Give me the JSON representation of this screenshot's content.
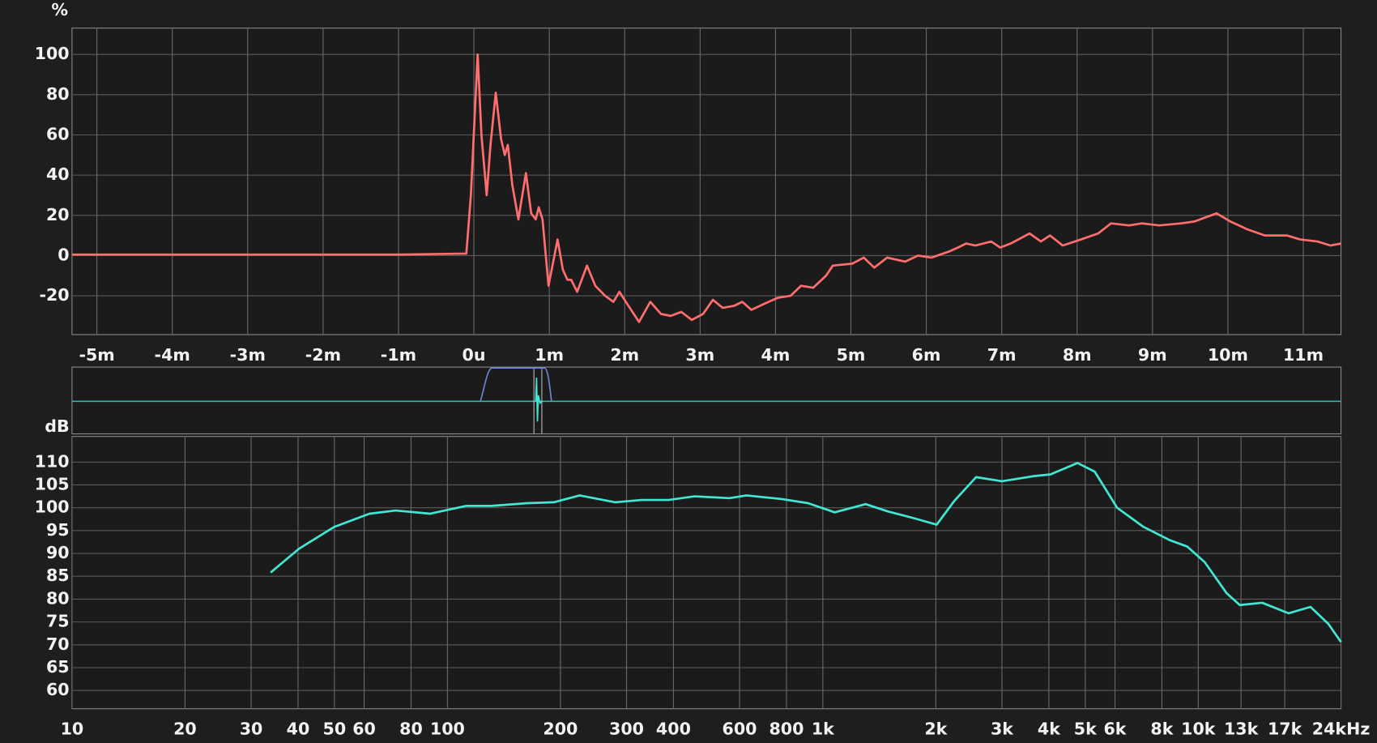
{
  "chart_data": [
    {
      "type": "line",
      "y_label": "%",
      "x": [
        -5.33,
        -1,
        -0.1,
        -0.04,
        0.05,
        0.1,
        0.17,
        0.22,
        0.29,
        0.36,
        0.41,
        0.45,
        0.51,
        0.59,
        0.69,
        0.76,
        0.82,
        0.86,
        0.91,
        0.99,
        1.11,
        1.18,
        1.24,
        1.29,
        1.37,
        1.5,
        1.61,
        1.74,
        1.85,
        1.93,
        2.05,
        2.19,
        2.34,
        2.48,
        2.61,
        2.75,
        2.89,
        3.04,
        3.17,
        3.3,
        3.45,
        3.56,
        3.68,
        3.85,
        4.03,
        4.2,
        4.34,
        4.5,
        4.67,
        4.76,
        5.02,
        5.17,
        5.31,
        5.48,
        5.72,
        5.89,
        6.07,
        6.3,
        6.42,
        6.53,
        6.65,
        6.86,
        6.98,
        7.12,
        7.37,
        7.52,
        7.64,
        7.81,
        8.05,
        8.28,
        8.45,
        8.69,
        8.86,
        9.09,
        9.38,
        9.56,
        9.85,
        10.03,
        10.26,
        10.49,
        10.78,
        10.96,
        11.19,
        11.36,
        11.5
      ],
      "series": [
        {
          "color": "#ff6e6e",
          "values": [
            0.5,
            0.5,
            1,
            30,
            100,
            60,
            30,
            55,
            81,
            58,
            50,
            55,
            35,
            18,
            41,
            21,
            18,
            24,
            18,
            -15,
            8,
            -7,
            -12,
            -12,
            -18,
            -5,
            -15,
            -20,
            -23,
            -18,
            -25,
            -33,
            -23,
            -29,
            -30,
            -28,
            -32,
            -29,
            -22,
            -26,
            -25,
            -23,
            -27,
            -24,
            -21,
            -20,
            -15,
            -16,
            -10,
            -5,
            -4,
            -1,
            -6,
            -1,
            -3,
            0,
            -1,
            2,
            4,
            6,
            5,
            7,
            4,
            6,
            11,
            7,
            10,
            5,
            8,
            11,
            16,
            15,
            16,
            15,
            16,
            17,
            21,
            17,
            13,
            10,
            10,
            8,
            7,
            5,
            6
          ]
        }
      ],
      "xlim": [
        -5.33,
        11.5
      ],
      "ylim": [
        -39.3,
        113.1
      ],
      "xticks": [
        {
          "value": -5,
          "label": "-5m"
        },
        {
          "value": -4,
          "label": "-4m"
        },
        {
          "value": -3,
          "label": "-3m"
        },
        {
          "value": -2,
          "label": "-2m"
        },
        {
          "value": -1,
          "label": "-1m"
        },
        {
          "value": 0,
          "label": "0u"
        },
        {
          "value": 1,
          "label": "1m"
        },
        {
          "value": 2,
          "label": "2m"
        },
        {
          "value": 3,
          "label": "3m"
        },
        {
          "value": 4,
          "label": "4m"
        },
        {
          "value": 5,
          "label": "5m"
        },
        {
          "value": 6,
          "label": "6m"
        },
        {
          "value": 7,
          "label": "7m"
        },
        {
          "value": 8,
          "label": "8m"
        },
        {
          "value": 9,
          "label": "9m"
        },
        {
          "value": 10,
          "label": "10m"
        },
        {
          "value": 11,
          "label": "11m"
        }
      ],
      "yticks": [
        -20,
        0,
        20,
        40,
        60,
        80,
        100
      ],
      "grid": true
    },
    {
      "type": "line",
      "y_label": "dB",
      "x_scale": "log",
      "x": [
        33.8,
        40.2,
        49.9,
        62,
        72.8,
        90,
        112,
        131,
        163,
        192,
        225,
        280,
        329,
        388,
        455,
        564,
        626,
        778,
        913,
        1075,
        1300,
        1490,
        1750,
        2010,
        2240,
        2560,
        3000,
        3630,
        4040,
        4770,
        5300,
        6080,
        7150,
        8400,
        9350,
        10400,
        11900,
        12900,
        14800,
        17400,
        19900,
        22200,
        24000
      ],
      "series": [
        {
          "color": "#40e8d4",
          "values": [
            85.8,
            91,
            95.8,
            98.7,
            99.4,
            98.7,
            100.4,
            100.4,
            101,
            101.2,
            102.7,
            101.2,
            101.7,
            101.7,
            102.5,
            102.1,
            102.7,
            101.9,
            101,
            99,
            100.8,
            99.2,
            97.7,
            96.3,
            101.5,
            106.7,
            105.8,
            106.9,
            107.3,
            109.8,
            107.9,
            100,
            95.8,
            92.9,
            91.5,
            88.1,
            81.3,
            78.7,
            79.2,
            76.9,
            78.3,
            74.6,
            70.6
          ]
        }
      ],
      "xlim": [
        10,
        24000
      ],
      "ylim": [
        56,
        115.6
      ],
      "xticks": [
        10,
        20,
        30,
        40,
        50,
        60,
        80,
        100,
        200,
        300,
        400,
        600,
        800,
        {
          "value": 1000,
          "label": "1k"
        },
        {
          "value": 2000,
          "label": "2k"
        },
        {
          "value": 3000,
          "label": "3k"
        },
        {
          "value": 4000,
          "label": "4k"
        },
        {
          "value": 5000,
          "label": "5k"
        },
        {
          "value": 6000,
          "label": "6k"
        },
        {
          "value": 8000,
          "label": "8k"
        },
        {
          "value": 10000,
          "label": "10k"
        },
        {
          "value": 13000,
          "label": "13k"
        },
        {
          "value": 17000,
          "label": "17k"
        },
        {
          "value": 24000,
          "label": "24kHz"
        }
      ],
      "yticks": [
        60,
        65,
        70,
        75,
        80,
        85,
        90,
        95,
        100,
        105,
        110
      ],
      "grid": true
    }
  ]
}
